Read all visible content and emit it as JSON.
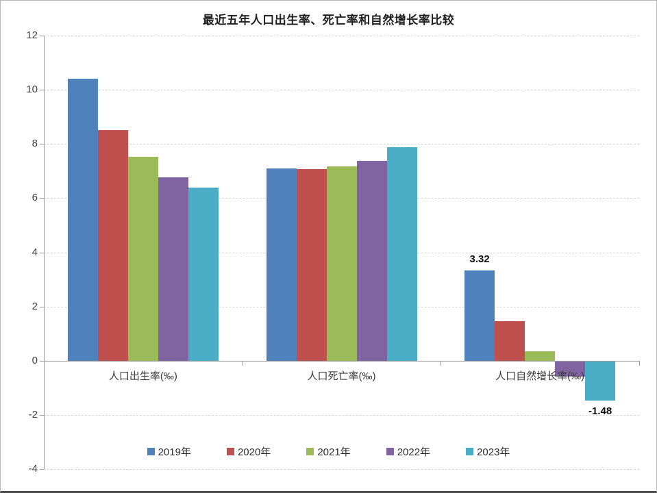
{
  "chart_data": {
    "type": "bar",
    "title": "最近五年人口出生率、死亡率和自然增长率比较",
    "categories": [
      "人口出生率(‰)",
      "人口死亡率(‰)",
      "人口自然增长率(‰)"
    ],
    "series": [
      {
        "name": "2019年",
        "color": "#4F81BD",
        "values": [
          10.41,
          7.09,
          3.32
        ]
      },
      {
        "name": "2020年",
        "color": "#C0504D",
        "values": [
          8.52,
          7.07,
          1.45
        ]
      },
      {
        "name": "2021年",
        "color": "#9BBB59",
        "values": [
          7.52,
          7.18,
          0.34
        ]
      },
      {
        "name": "2022年",
        "color": "#8064A2",
        "values": [
          6.77,
          7.37,
          -0.6
        ]
      },
      {
        "name": "2023年",
        "color": "#4BACC6",
        "values": [
          6.39,
          7.87,
          -1.48
        ]
      }
    ],
    "y_axis": {
      "min": -4,
      "max": 12,
      "step": 2,
      "ticks": [
        12,
        10,
        8,
        6,
        4,
        2,
        0,
        -2,
        -4
      ]
    },
    "data_labels": [
      {
        "text": "3.32",
        "series_index": 0,
        "category_index": 2,
        "position": "above"
      },
      {
        "text": "-1.48",
        "series_index": 4,
        "category_index": 2,
        "position": "below"
      }
    ],
    "grid": "horizontal-dashed",
    "legend_position": "bottom",
    "colors": {
      "axis": "#9b9b9b",
      "gridline": "#d6d6d6",
      "title_text": "#1f1f1f",
      "label_text": "#3a3a3a",
      "data_label_text": "#111111"
    }
  }
}
